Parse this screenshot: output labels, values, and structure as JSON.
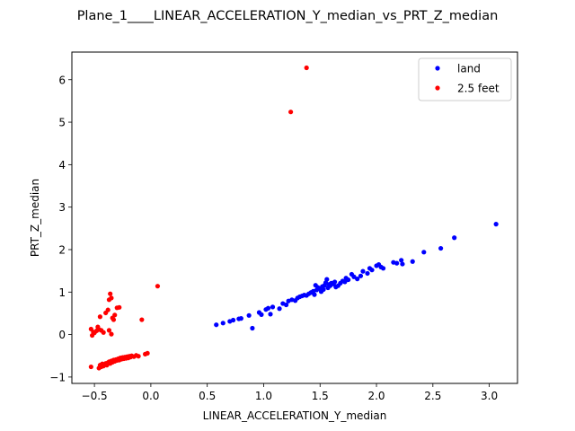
{
  "chart_data": {
    "type": "scatter",
    "title": "Plane_1____LINEAR_ACCELERATION_Y_median_vs_PRT_Z_median",
    "xlabel": "LINEAR_ACCELERATION_Y_median",
    "ylabel": "PRT_Z_median",
    "xlim": [
      -0.7,
      3.25
    ],
    "ylim": [
      -1.15,
      6.65
    ],
    "xticks": [
      -0.5,
      0.0,
      0.5,
      1.0,
      1.5,
      2.0,
      2.5,
      3.0
    ],
    "xtick_labels": [
      "−0.5",
      "0.0",
      "0.5",
      "1.0",
      "1.5",
      "2.0",
      "2.5",
      "3.0"
    ],
    "yticks": [
      -1,
      0,
      1,
      2,
      3,
      4,
      5,
      6
    ],
    "ytick_labels": [
      "−1",
      "0",
      "1",
      "2",
      "3",
      "4",
      "5",
      "6"
    ],
    "grid": false,
    "legend": "top-right",
    "series": [
      {
        "name": "land",
        "color": "#0000ff",
        "points": [
          [
            0.58,
            0.23
          ],
          [
            0.64,
            0.27
          ],
          [
            0.7,
            0.31
          ],
          [
            0.73,
            0.34
          ],
          [
            0.78,
            0.37
          ],
          [
            0.8,
            0.38
          ],
          [
            0.87,
            0.45
          ],
          [
            0.9,
            0.15
          ],
          [
            0.96,
            0.52
          ],
          [
            0.98,
            0.47
          ],
          [
            1.02,
            0.59
          ],
          [
            1.04,
            0.62
          ],
          [
            1.06,
            0.48
          ],
          [
            1.08,
            0.65
          ],
          [
            1.14,
            0.61
          ],
          [
            1.17,
            0.73
          ],
          [
            1.2,
            0.7
          ],
          [
            1.22,
            0.79
          ],
          [
            1.25,
            0.82
          ],
          [
            1.28,
            0.8
          ],
          [
            1.3,
            0.86
          ],
          [
            1.32,
            0.89
          ],
          [
            1.34,
            0.91
          ],
          [
            1.36,
            0.93
          ],
          [
            1.38,
            0.92
          ],
          [
            1.4,
            0.96
          ],
          [
            1.42,
            0.99
          ],
          [
            1.44,
            1.02
          ],
          [
            1.45,
            0.94
          ],
          [
            1.46,
            1.16
          ],
          [
            1.47,
            1.05
          ],
          [
            1.48,
            1.11
          ],
          [
            1.5,
            1.08
          ],
          [
            1.51,
            1.01
          ],
          [
            1.52,
            1.13
          ],
          [
            1.53,
            1.06
          ],
          [
            1.54,
            1.16
          ],
          [
            1.55,
            1.22
          ],
          [
            1.56,
            1.3
          ],
          [
            1.57,
            1.1
          ],
          [
            1.58,
            1.18
          ],
          [
            1.59,
            1.15
          ],
          [
            1.6,
            1.21
          ],
          [
            1.62,
            1.19
          ],
          [
            1.63,
            1.24
          ],
          [
            1.64,
            1.12
          ],
          [
            1.66,
            1.15
          ],
          [
            1.68,
            1.21
          ],
          [
            1.7,
            1.26
          ],
          [
            1.72,
            1.24
          ],
          [
            1.73,
            1.33
          ],
          [
            1.75,
            1.29
          ],
          [
            1.78,
            1.42
          ],
          [
            1.8,
            1.36
          ],
          [
            1.83,
            1.31
          ],
          [
            1.86,
            1.38
          ],
          [
            1.88,
            1.49
          ],
          [
            1.92,
            1.44
          ],
          [
            1.94,
            1.56
          ],
          [
            1.96,
            1.52
          ],
          [
            2.0,
            1.62
          ],
          [
            2.02,
            1.65
          ],
          [
            2.04,
            1.59
          ],
          [
            2.06,
            1.56
          ],
          [
            2.15,
            1.7
          ],
          [
            2.18,
            1.68
          ],
          [
            2.22,
            1.75
          ],
          [
            2.23,
            1.66
          ],
          [
            2.32,
            1.72
          ],
          [
            2.42,
            1.94
          ],
          [
            2.57,
            2.03
          ],
          [
            2.69,
            2.28
          ],
          [
            3.06,
            2.6
          ]
        ]
      },
      {
        "name": "2.5 feet",
        "color": "#ff0000",
        "points": [
          [
            -0.53,
            0.13
          ],
          [
            -0.52,
            -0.02
          ],
          [
            -0.51,
            0.06
          ],
          [
            -0.5,
            0.04
          ],
          [
            -0.48,
            0.09
          ],
          [
            -0.47,
            0.18
          ],
          [
            -0.46,
            0.12
          ],
          [
            -0.45,
            0.42
          ],
          [
            -0.44,
            0.1
          ],
          [
            -0.42,
            0.05
          ],
          [
            -0.4,
            0.51
          ],
          [
            -0.38,
            0.58
          ],
          [
            -0.37,
            0.82
          ],
          [
            -0.36,
            0.96
          ],
          [
            -0.35,
            0.86
          ],
          [
            -0.34,
            0.39
          ],
          [
            -0.33,
            0.35
          ],
          [
            -0.32,
            0.46
          ],
          [
            -0.3,
            0.63
          ],
          [
            -0.28,
            0.64
          ],
          [
            -0.35,
            0.01
          ],
          [
            -0.37,
            0.1
          ],
          [
            -0.08,
            0.35
          ],
          [
            0.06,
            1.14
          ],
          [
            -0.53,
            -0.76
          ],
          [
            -0.46,
            -0.79
          ],
          [
            -0.45,
            -0.72
          ],
          [
            -0.44,
            -0.76
          ],
          [
            -0.43,
            -0.69
          ],
          [
            -0.42,
            -0.74
          ],
          [
            -0.41,
            -0.71
          ],
          [
            -0.4,
            -0.68
          ],
          [
            -0.39,
            -0.72
          ],
          [
            -0.38,
            -0.66
          ],
          [
            -0.37,
            -0.64
          ],
          [
            -0.36,
            -0.68
          ],
          [
            -0.35,
            -0.62
          ],
          [
            -0.34,
            -0.65
          ],
          [
            -0.33,
            -0.6
          ],
          [
            -0.32,
            -0.63
          ],
          [
            -0.31,
            -0.59
          ],
          [
            -0.3,
            -0.61
          ],
          [
            -0.29,
            -0.57
          ],
          [
            -0.28,
            -0.6
          ],
          [
            -0.27,
            -0.55
          ],
          [
            -0.26,
            -0.58
          ],
          [
            -0.25,
            -0.54
          ],
          [
            -0.24,
            -0.57
          ],
          [
            -0.23,
            -0.53
          ],
          [
            -0.22,
            -0.56
          ],
          [
            -0.21,
            -0.52
          ],
          [
            -0.2,
            -0.55
          ],
          [
            -0.19,
            -0.51
          ],
          [
            -0.18,
            -0.53
          ],
          [
            -0.17,
            -0.5
          ],
          [
            -0.15,
            -0.52
          ],
          [
            -0.13,
            -0.49
          ],
          [
            -0.11,
            -0.51
          ],
          [
            -0.05,
            -0.46
          ],
          [
            -0.03,
            -0.44
          ],
          [
            1.24,
            5.24
          ],
          [
            1.38,
            6.28
          ]
        ]
      }
    ]
  }
}
